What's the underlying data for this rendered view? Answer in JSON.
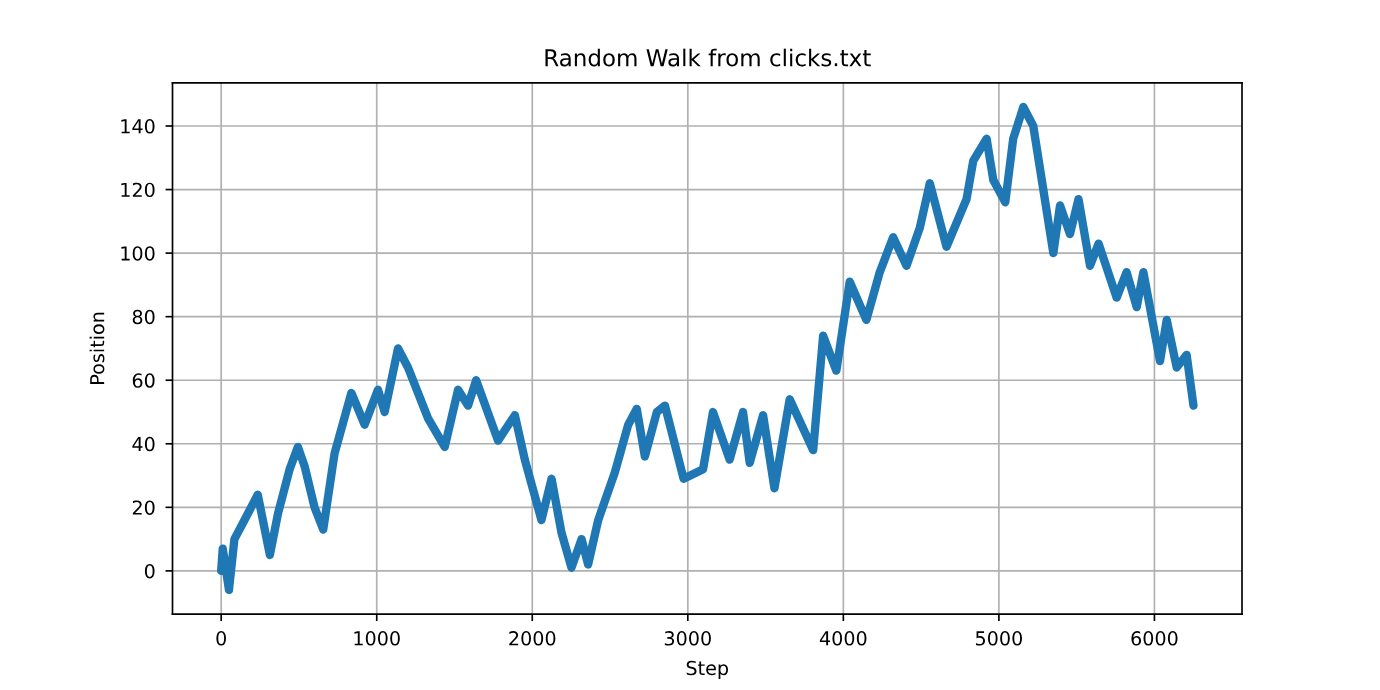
{
  "chart_data": {
    "type": "line",
    "title": "Random Walk from clicks.txt",
    "xlabel": "Step",
    "ylabel": "Position",
    "xlim": [
      -313,
      6563
    ],
    "ylim": [
      -13.6,
      153.6
    ],
    "xticks": [
      0,
      1000,
      2000,
      3000,
      4000,
      5000,
      6000
    ],
    "yticks": [
      0,
      20,
      40,
      60,
      80,
      100,
      120,
      140
    ],
    "grid": true,
    "marker": "none",
    "line_style": "solid",
    "series": [
      {
        "color": "#1f77b4",
        "x": [
          0,
          10,
          50,
          85,
          150,
          235,
          313,
          365,
          440,
          493,
          536,
          600,
          656,
          729,
          837,
          922,
          1008,
          1051,
          1137,
          1201,
          1330,
          1437,
          1523,
          1587,
          1639,
          1780,
          1888,
          1952,
          2059,
          2124,
          2188,
          2252,
          2317,
          2359,
          2424,
          2531,
          2617,
          2672,
          2724,
          2801,
          2853,
          2973,
          3098,
          3162,
          3269,
          3355,
          3398,
          3484,
          3557,
          3655,
          3806,
          3870,
          3955,
          4041,
          4148,
          4234,
          4320,
          4406,
          4492,
          4556,
          4663,
          4792,
          4835,
          4921,
          4964,
          5041,
          5092,
          5157,
          5221,
          5350,
          5393,
          5457,
          5512,
          5586,
          5641,
          5757,
          5821,
          5886,
          5929,
          6036,
          6079,
          6143,
          6207,
          6251
        ],
        "values": [
          0,
          7,
          -6,
          10,
          16,
          24,
          5,
          18,
          32,
          39,
          33,
          20,
          13,
          37,
          56,
          46,
          57,
          50,
          70,
          64,
          48,
          39,
          57,
          52,
          60,
          41,
          49,
          35,
          16,
          29,
          12,
          1,
          10,
          2,
          16,
          31,
          46,
          51,
          36,
          50,
          52,
          29,
          32,
          50,
          35,
          50,
          34,
          49,
          26,
          54,
          38,
          74,
          63,
          91,
          79,
          94,
          105,
          96,
          108,
          122,
          102,
          117,
          129,
          136,
          123,
          116,
          136,
          146,
          140,
          100,
          115,
          106,
          117,
          96,
          103,
          86,
          94,
          83,
          94,
          66,
          79,
          64,
          68,
          52
        ]
      }
    ]
  }
}
